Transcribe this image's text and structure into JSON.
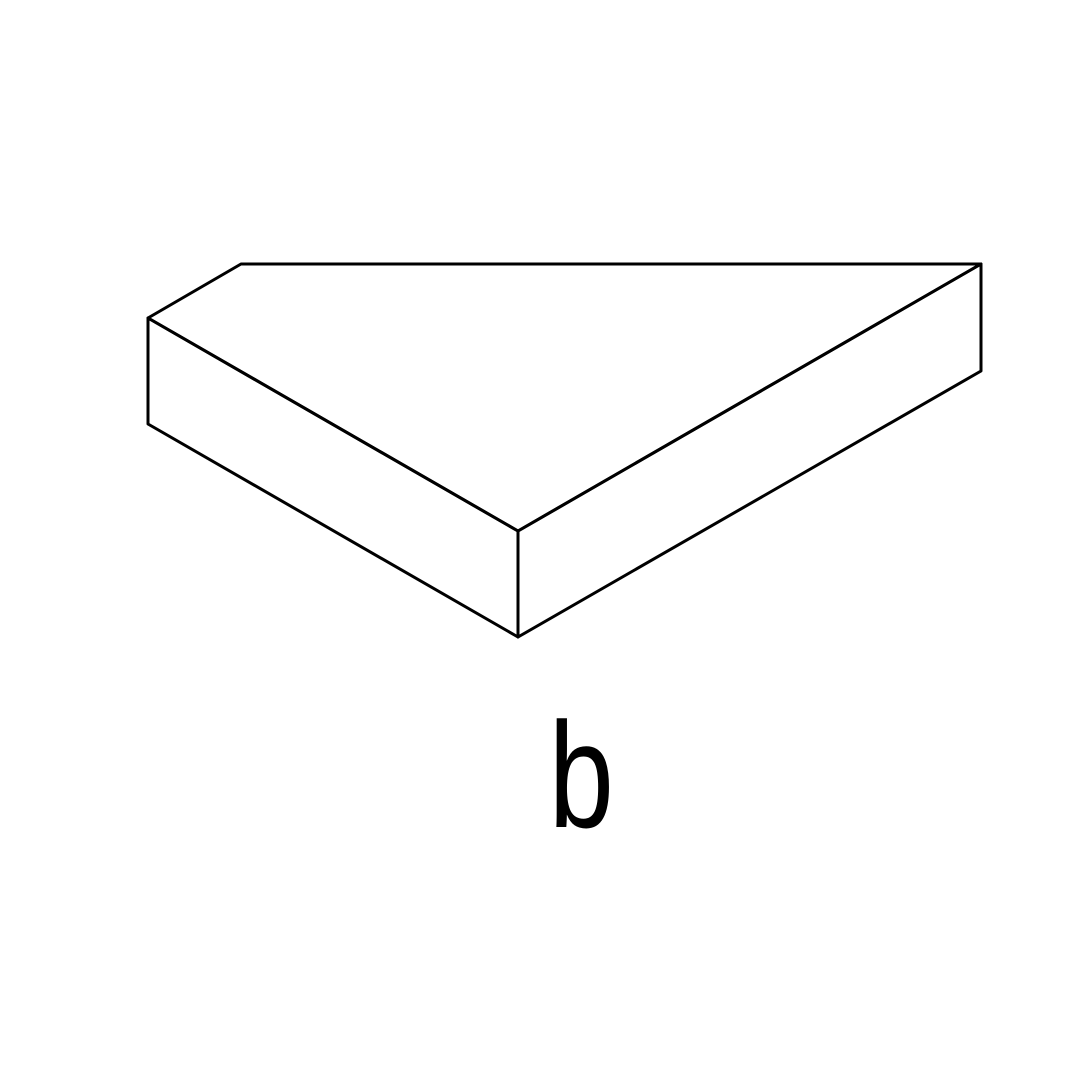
{
  "figure": {
    "label": "b",
    "line_color": "#000000",
    "background_color": "#ffffff",
    "shape": "triangular-prism-slab"
  }
}
